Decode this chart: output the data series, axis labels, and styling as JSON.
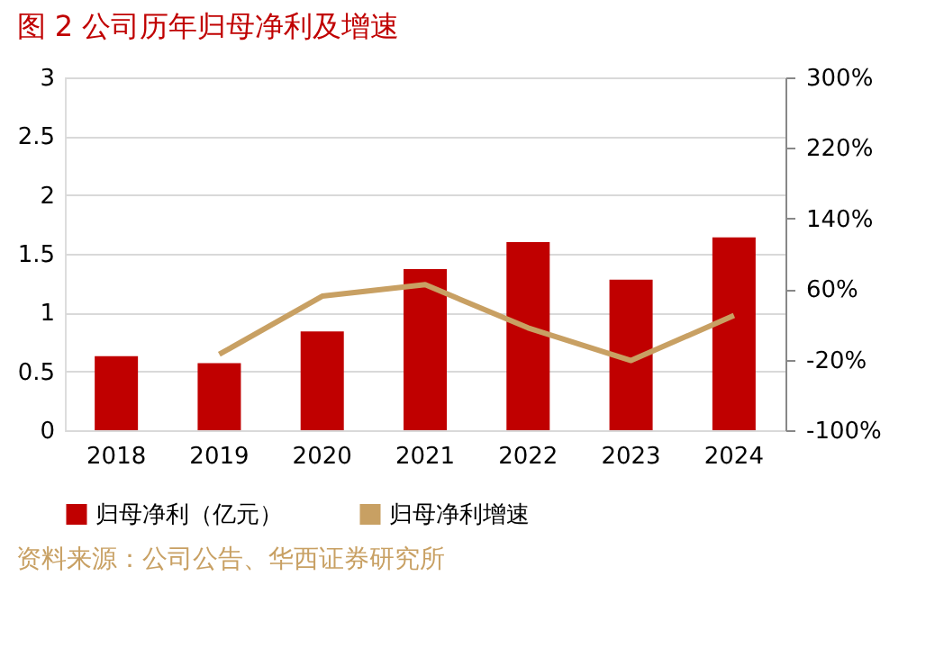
{
  "chart_data": {
    "type": "bar",
    "title": "图 2 公司历年归母净利及增速",
    "categories": [
      "2018",
      "2019",
      "2020",
      "2021",
      "2022",
      "2023",
      "2024"
    ],
    "series": [
      {
        "name": "归母净利（亿元）",
        "color": "#c00000",
        "values": [
          0.63,
          0.57,
          0.84,
          1.37,
          1.6,
          1.28,
          1.64
        ]
      },
      {
        "name": "归母净利增速",
        "type": "line",
        "axis": "y2",
        "color": "#c8a063",
        "values": [
          null,
          -14,
          52,
          65,
          16,
          -21,
          30
        ]
      }
    ],
    "ylim": [
      0,
      3
    ],
    "yticks": [
      0,
      0.5,
      1,
      1.5,
      2,
      2.5,
      3
    ],
    "y2lim": [
      -100,
      300
    ],
    "y2ticks": [
      {
        "value": -100,
        "label": "-100%"
      },
      {
        "value": -20,
        "label": "-20%"
      },
      {
        "value": 60,
        "label": "60%"
      },
      {
        "value": 140,
        "label": "140%"
      },
      {
        "value": 220,
        "label": "220%"
      },
      {
        "value": 300,
        "label": "300%"
      }
    ],
    "grid": "y",
    "legend": "bottom",
    "marker": "none",
    "line_style": "solid",
    "annotations": [
      "资料来源：公司公告、华西证券研究所"
    ]
  }
}
